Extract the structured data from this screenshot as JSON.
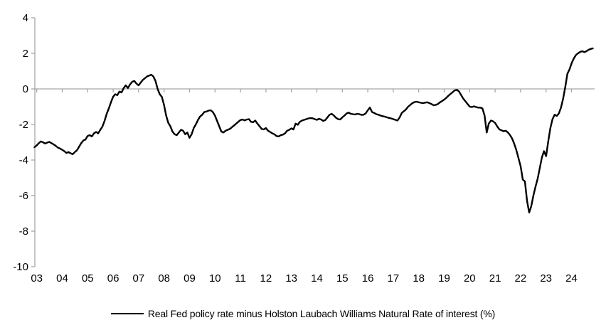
{
  "chart_data": {
    "type": "line",
    "title": "",
    "legend": {
      "label": "Real Fed policy rate minus Holston Laubach Williams Natural Rate of interest (%)",
      "position": "bottom",
      "marker": "black-line"
    },
    "x_axis": {
      "tick_labels": [
        "03",
        "04",
        "05",
        "06",
        "07",
        "08",
        "09",
        "10",
        "11",
        "12",
        "13",
        "14",
        "15",
        "16",
        "17",
        "18",
        "19",
        "20",
        "21",
        "22",
        "23",
        "24"
      ],
      "frequency": "monthly",
      "start": "2003-01",
      "end": "2024-12",
      "ticks_drawn_on_zero_line": true
    },
    "y_axis": {
      "tick_labels": [
        "4",
        "2",
        "0",
        "-2",
        "-4",
        "-6",
        "-8",
        "-10"
      ],
      "ticks": [
        4,
        2,
        0,
        -2,
        -4,
        -6,
        -8,
        -10
      ],
      "ylim": [
        -10,
        4
      ],
      "gridlines": "zero-line-only"
    },
    "colors": {
      "axis": "#a6a6a6",
      "series": "#000000",
      "text": "#000000",
      "background": "#ffffff"
    },
    "series": [
      {
        "name": "Real Fed policy rate minus Holston Laubach Williams Natural Rate of interest (%)",
        "color": "#000000",
        "values": [
          -3.28,
          -3.18,
          -3.05,
          -2.95,
          -3.0,
          -3.07,
          -3.02,
          -2.98,
          -3.05,
          -3.12,
          -3.2,
          -3.3,
          -3.35,
          -3.42,
          -3.5,
          -3.6,
          -3.55,
          -3.62,
          -3.67,
          -3.55,
          -3.45,
          -3.25,
          -3.05,
          -2.9,
          -2.85,
          -2.65,
          -2.6,
          -2.67,
          -2.5,
          -2.42,
          -2.5,
          -2.3,
          -2.12,
          -1.8,
          -1.4,
          -1.1,
          -0.75,
          -0.45,
          -0.3,
          -0.35,
          -0.15,
          -0.2,
          0.05,
          0.2,
          0.05,
          0.25,
          0.4,
          0.45,
          0.3,
          0.2,
          0.35,
          0.5,
          0.6,
          0.7,
          0.75,
          0.8,
          0.7,
          0.45,
          0.0,
          -0.3,
          -0.45,
          -0.9,
          -1.5,
          -1.9,
          -2.1,
          -2.4,
          -2.55,
          -2.6,
          -2.45,
          -2.3,
          -2.35,
          -2.55,
          -2.45,
          -2.75,
          -2.55,
          -2.2,
          -2.0,
          -1.75,
          -1.55,
          -1.45,
          -1.3,
          -1.27,
          -1.22,
          -1.2,
          -1.3,
          -1.5,
          -1.8,
          -2.1,
          -2.4,
          -2.45,
          -2.35,
          -2.3,
          -2.25,
          -2.15,
          -2.05,
          -1.95,
          -1.85,
          -1.75,
          -1.72,
          -1.77,
          -1.72,
          -1.7,
          -1.85,
          -1.87,
          -1.78,
          -1.95,
          -2.1,
          -2.25,
          -2.28,
          -2.2,
          -2.35,
          -2.42,
          -2.5,
          -2.55,
          -2.65,
          -2.67,
          -2.6,
          -2.57,
          -2.5,
          -2.35,
          -2.3,
          -2.22,
          -2.28,
          -1.95,
          -2.02,
          -1.85,
          -1.78,
          -1.74,
          -1.7,
          -1.66,
          -1.64,
          -1.65,
          -1.7,
          -1.74,
          -1.68,
          -1.72,
          -1.8,
          -1.75,
          -1.6,
          -1.45,
          -1.4,
          -1.5,
          -1.62,
          -1.7,
          -1.72,
          -1.6,
          -1.5,
          -1.38,
          -1.33,
          -1.4,
          -1.42,
          -1.44,
          -1.4,
          -1.42,
          -1.46,
          -1.45,
          -1.38,
          -1.2,
          -1.05,
          -1.3,
          -1.35,
          -1.42,
          -1.45,
          -1.5,
          -1.53,
          -1.56,
          -1.6,
          -1.63,
          -1.66,
          -1.7,
          -1.74,
          -1.78,
          -1.6,
          -1.35,
          -1.25,
          -1.15,
          -1.0,
          -0.9,
          -0.8,
          -0.74,
          -0.72,
          -0.75,
          -0.78,
          -0.8,
          -0.77,
          -0.75,
          -0.8,
          -0.85,
          -0.92,
          -0.9,
          -0.85,
          -0.75,
          -0.68,
          -0.6,
          -0.5,
          -0.38,
          -0.28,
          -0.18,
          -0.08,
          -0.05,
          -0.15,
          -0.35,
          -0.55,
          -0.7,
          -0.85,
          -1.0,
          -1.02,
          -0.98,
          -1.02,
          -1.05,
          -1.05,
          -1.1,
          -1.5,
          -2.45,
          -1.95,
          -1.78,
          -1.82,
          -1.92,
          -2.12,
          -2.28,
          -2.33,
          -2.38,
          -2.35,
          -2.45,
          -2.6,
          -2.8,
          -3.1,
          -3.45,
          -3.9,
          -4.35,
          -5.1,
          -5.2,
          -6.3,
          -6.95,
          -6.6,
          -6.0,
          -5.5,
          -5.05,
          -4.45,
          -3.85,
          -3.5,
          -3.78,
          -2.95,
          -2.2,
          -1.7,
          -1.45,
          -1.52,
          -1.38,
          -1.05,
          -0.55,
          0.1,
          0.85,
          1.1,
          1.45,
          1.7,
          1.9,
          2.0,
          2.08,
          2.12,
          2.07,
          2.12,
          2.2,
          2.25,
          2.28
        ]
      }
    ]
  }
}
